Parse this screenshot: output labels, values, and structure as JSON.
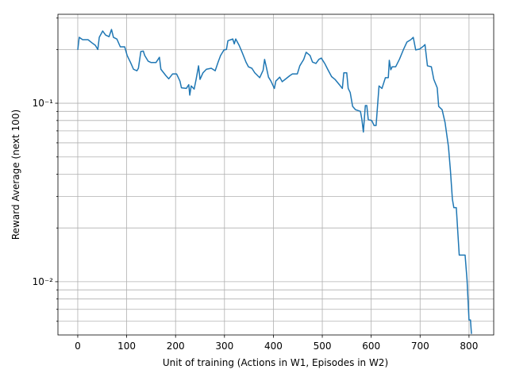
{
  "chart_data": {
    "type": "line",
    "xlabel": "Unit of training (Actions in W1, Episodes in W2)",
    "ylabel": "Reward Average (next 100)",
    "color": "#1f77b4",
    "yscale": "log",
    "grid": true,
    "xlim": [
      -40.5,
      850.5
    ],
    "xticks": [
      0,
      100,
      200,
      300,
      400,
      500,
      600,
      700,
      800
    ],
    "ylim": [
      0.00503,
      0.315
    ],
    "yticks": [
      {
        "value": 0.1,
        "label": "10⁻¹"
      },
      {
        "value": 0.01,
        "label": "10⁻²"
      }
    ],
    "yminorticks": [
      0.006,
      0.007,
      0.008,
      0.009,
      0.02,
      0.03,
      0.04,
      0.05,
      0.06,
      0.07,
      0.08,
      0.09,
      0.2,
      0.3
    ],
    "x": [
      0,
      3,
      10,
      21,
      29,
      36,
      41,
      44,
      51,
      57,
      64,
      69,
      73,
      80,
      87,
      96,
      101,
      108,
      114,
      121,
      124,
      129,
      134,
      137,
      144,
      150,
      160,
      167,
      170,
      180,
      186,
      194,
      202,
      209,
      212,
      222,
      227,
      229,
      232,
      238,
      242,
      247,
      250,
      256,
      263,
      273,
      281,
      287,
      292,
      299,
      304,
      307,
      317,
      320,
      323,
      330,
      336,
      344,
      349,
      356,
      362,
      372,
      379,
      382,
      385,
      390,
      395,
      402,
      405,
      413,
      418,
      424,
      434,
      439,
      449,
      454,
      462,
      467,
      475,
      480,
      487,
      493,
      498,
      505,
      511,
      519,
      526,
      535,
      541,
      544,
      550,
      553,
      557,
      562,
      568,
      578,
      581,
      584,
      588,
      591,
      594,
      601,
      606,
      610,
      616,
      622,
      629,
      635,
      637,
      640,
      643,
      650,
      658,
      666,
      673,
      681,
      686,
      691,
      699,
      707,
      710,
      715,
      723,
      728,
      735,
      738,
      745,
      751,
      758,
      762,
      766,
      769,
      774,
      780,
      792,
      796,
      800,
      803,
      805
    ],
    "values": [
      0.199,
      0.234,
      0.227,
      0.227,
      0.218,
      0.211,
      0.2,
      0.234,
      0.254,
      0.241,
      0.236,
      0.259,
      0.234,
      0.229,
      0.207,
      0.207,
      0.185,
      0.169,
      0.155,
      0.152,
      0.157,
      0.195,
      0.196,
      0.185,
      0.172,
      0.169,
      0.169,
      0.181,
      0.155,
      0.143,
      0.137,
      0.146,
      0.146,
      0.133,
      0.122,
      0.121,
      0.127,
      0.111,
      0.125,
      0.12,
      0.136,
      0.162,
      0.136,
      0.148,
      0.155,
      0.157,
      0.152,
      0.17,
      0.185,
      0.199,
      0.2,
      0.224,
      0.229,
      0.215,
      0.229,
      0.211,
      0.193,
      0.17,
      0.16,
      0.157,
      0.148,
      0.139,
      0.153,
      0.176,
      0.162,
      0.14,
      0.133,
      0.121,
      0.133,
      0.14,
      0.132,
      0.136,
      0.143,
      0.146,
      0.146,
      0.162,
      0.176,
      0.193,
      0.185,
      0.17,
      0.167,
      0.176,
      0.179,
      0.167,
      0.155,
      0.141,
      0.136,
      0.127,
      0.121,
      0.148,
      0.148,
      0.121,
      0.115,
      0.096,
      0.092,
      0.09,
      0.081,
      0.069,
      0.097,
      0.097,
      0.081,
      0.08,
      0.075,
      0.075,
      0.125,
      0.121,
      0.139,
      0.139,
      0.174,
      0.154,
      0.16,
      0.16,
      0.177,
      0.2,
      0.22,
      0.227,
      0.234,
      0.199,
      0.201,
      0.209,
      0.213,
      0.162,
      0.16,
      0.136,
      0.122,
      0.096,
      0.092,
      0.078,
      0.057,
      0.042,
      0.029,
      0.026,
      0.026,
      0.0141,
      0.0141,
      0.0102,
      0.0061,
      0.0061,
      0.0051
    ]
  }
}
